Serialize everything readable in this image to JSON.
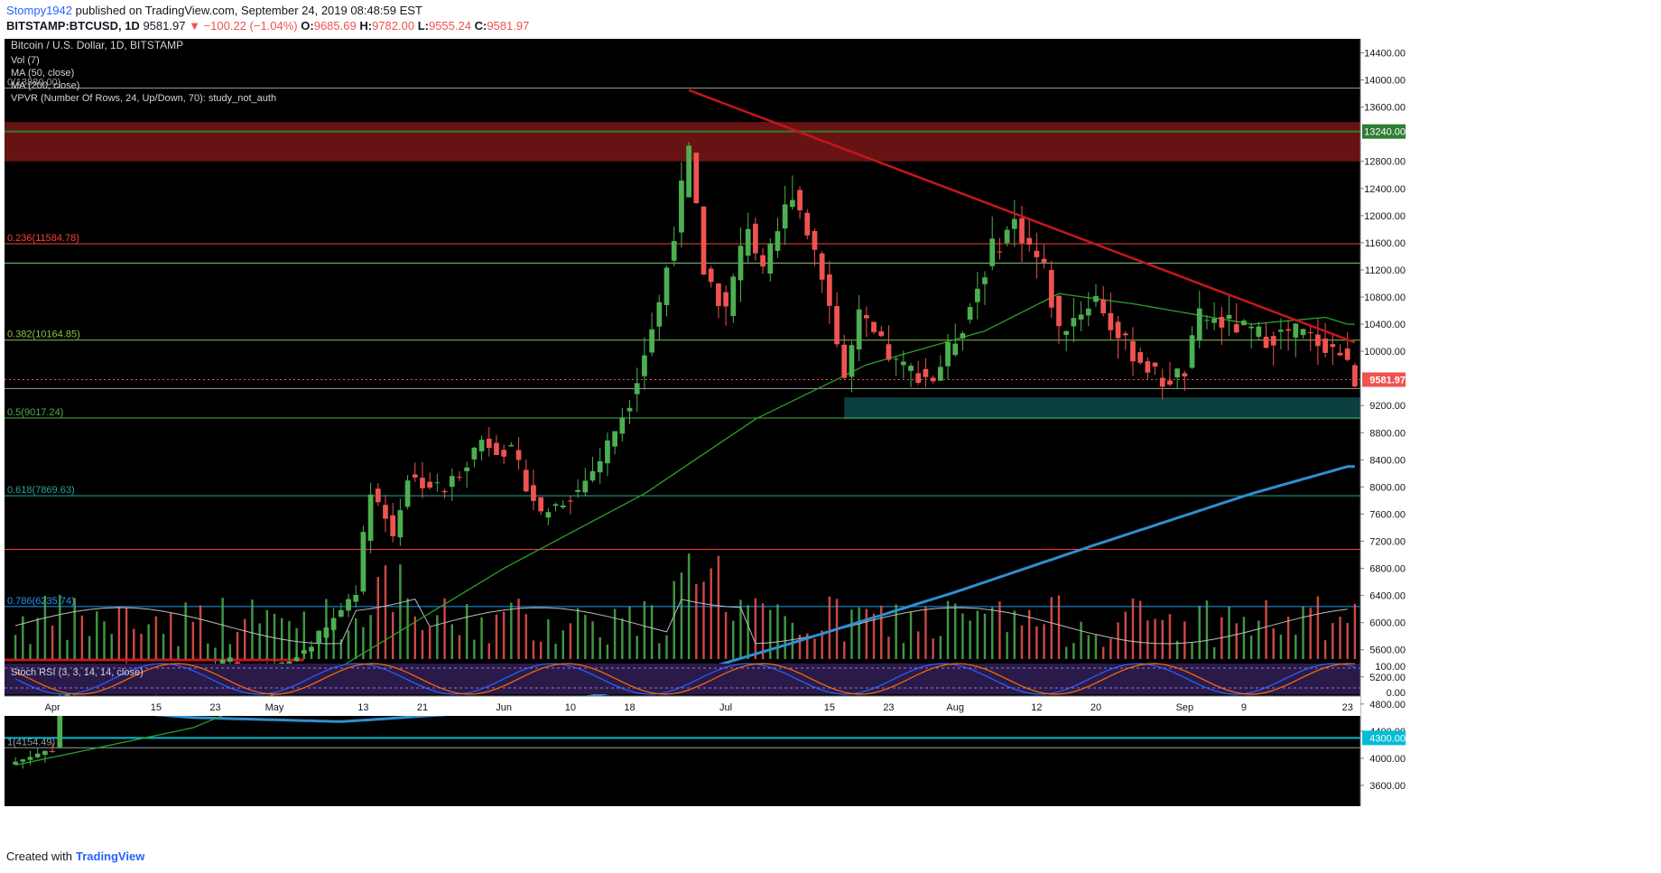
{
  "header": {
    "author": "Stompy1942",
    "published_text": "published on TradingView.com, September 24, 2019 08:48:59 EST",
    "symbol": "BITSTAMP:BTCUSD, 1D",
    "last": "9581.97",
    "change": "−100.22 (−1.04%)",
    "o_label": "O:",
    "o": "9685.69",
    "h_label": "H:",
    "h": "9782.00",
    "l_label": "L:",
    "l": "9555.24",
    "c_label": "C:",
    "c": "9581.97"
  },
  "legend": {
    "title": "Bitcoin / U.S. Dollar, 1D, BITSTAMP",
    "vol": "Vol (7)",
    "ma50": "MA (50, close)",
    "ma200": "MA (200, close)",
    "vpvr": "VPVR (Number Of Rows, 24, Up/Down, 70): study_not_auth",
    "stoch": "Stoch RSI (3, 3, 14, 14, close)"
  },
  "footer": {
    "created_with": "Created with",
    "brand": "TradingView"
  },
  "colors": {
    "background": "#000000",
    "up": "#4caf50",
    "down": "#ef5350",
    "ma50": "#2ca02c",
    "ma200": "#2f8fd0",
    "trendline": "#c4161c",
    "resistance_zone": "#8b1a1a",
    "support_zone": "#0f4f4f",
    "k_line": "#2962ff",
    "d_line": "#ff6d00"
  },
  "chart_data": {
    "type": "candlestick",
    "price_range": [
      3400,
      14500
    ],
    "price_ticks": [
      "14400.00",
      "14000.00",
      "13600.00",
      "12800.00",
      "12400.00",
      "12000.00",
      "11600.00",
      "11200.00",
      "10800.00",
      "10400.00",
      "10000.00",
      "9200.00",
      "8800.00",
      "8400.00",
      "8000.00",
      "7600.00",
      "7200.00",
      "6800.00",
      "6400.00",
      "6000.00",
      "5600.00",
      "5200.00",
      "4800.00",
      "4400.00",
      "4000.00",
      "3600.00"
    ],
    "x_ticks": [
      {
        "label": "Apr",
        "date": "2019-04-01"
      },
      {
        "label": "15",
        "date": "2019-04-15"
      },
      {
        "label": "23",
        "date": "2019-04-23"
      },
      {
        "label": "May",
        "date": "2019-05-01"
      },
      {
        "label": "13",
        "date": "2019-05-13"
      },
      {
        "label": "21",
        "date": "2019-05-21"
      },
      {
        "label": "Jun",
        "date": "2019-06-01"
      },
      {
        "label": "10",
        "date": "2019-06-10"
      },
      {
        "label": "18",
        "date": "2019-06-18"
      },
      {
        "label": "Jul",
        "date": "2019-07-01"
      },
      {
        "label": "15",
        "date": "2019-07-15"
      },
      {
        "label": "23",
        "date": "2019-07-23"
      },
      {
        "label": "Aug",
        "date": "2019-08-01"
      },
      {
        "label": "12",
        "date": "2019-08-12"
      },
      {
        "label": "20",
        "date": "2019-08-20"
      },
      {
        "label": "Sep",
        "date": "2019-09-01"
      },
      {
        "label": "9",
        "date": "2019-09-09"
      },
      {
        "label": "23",
        "date": "2019-09-23"
      }
    ],
    "fib_levels": [
      {
        "label": "0(13880.00)",
        "value": 13880,
        "color": "#9e9e9e"
      },
      {
        "label": "0.236(11584.78)",
        "value": 11584.78,
        "color": "#f44336"
      },
      {
        "label": "",
        "value": 11300,
        "color": "#81c784"
      },
      {
        "label": "0.382(10164.85)",
        "value": 10164.85,
        "color": "#8bc34a"
      },
      {
        "label": "",
        "value": 9450,
        "color": "#9e9e9e"
      },
      {
        "label": "0.5(9017.24)",
        "value": 9017.24,
        "color": "#4caf50"
      },
      {
        "label": "0.618(7869.63)",
        "value": 7869.63,
        "color": "#26a69a"
      },
      {
        "label": "",
        "value": 7080,
        "color": "#f44336"
      },
      {
        "label": "0.786(6235.74)",
        "value": 6235.74,
        "color": "#2196f3"
      },
      {
        "label": "1(4154.49)",
        "value": 4154.49,
        "color": "#9e9e9e"
      }
    ],
    "highlight_levels": [
      {
        "label": "13240.00",
        "value": 13240,
        "color": "#2e7d32"
      },
      {
        "label": "4300.00",
        "value": 4300,
        "color": "#00bcd4"
      }
    ],
    "last_price": {
      "label": "9581.97",
      "value": 9581.97
    },
    "resistance_zone": [
      12800,
      13380
    ],
    "support_zone": [
      9000,
      9320
    ],
    "trendline": [
      {
        "date": "2019-06-26",
        "value": 13850
      },
      {
        "date": "2019-09-24",
        "value": 10130
      }
    ],
    "side_level": {
      "from": "2019-03-27",
      "to": "2019-05-05",
      "value": 5450
    },
    "ohlc_anchors": [
      {
        "date": "2019-03-27",
        "value": 3950
      },
      {
        "date": "2019-04-01",
        "value": 4150
      },
      {
        "date": "2019-04-02",
        "value": 4900
      },
      {
        "date": "2019-04-05",
        "value": 5050
      },
      {
        "date": "2019-04-10",
        "value": 5250
      },
      {
        "date": "2019-04-14",
        "value": 5100
      },
      {
        "date": "2019-04-21",
        "value": 5300
      },
      {
        "date": "2019-04-25",
        "value": 5450
      },
      {
        "date": "2019-04-27",
        "value": 5150
      },
      {
        "date": "2019-05-03",
        "value": 5400
      },
      {
        "date": "2019-05-08",
        "value": 5900
      },
      {
        "date": "2019-05-12",
        "value": 6500
      },
      {
        "date": "2019-05-14",
        "value": 8000
      },
      {
        "date": "2019-05-17",
        "value": 7300
      },
      {
        "date": "2019-05-19",
        "value": 8150
      },
      {
        "date": "2019-05-24",
        "value": 7950
      },
      {
        "date": "2019-05-29",
        "value": 8700
      },
      {
        "date": "2019-06-02",
        "value": 8500
      },
      {
        "date": "2019-06-06",
        "value": 7600
      },
      {
        "date": "2019-06-11",
        "value": 7950
      },
      {
        "date": "2019-06-14",
        "value": 8400
      },
      {
        "date": "2019-06-18",
        "value": 9300
      },
      {
        "date": "2019-06-22",
        "value": 10700
      },
      {
        "date": "2019-06-26",
        "value": 12900
      },
      {
        "date": "2019-06-28",
        "value": 11200
      },
      {
        "date": "2019-07-01",
        "value": 10600
      },
      {
        "date": "2019-07-04",
        "value": 11900
      },
      {
        "date": "2019-07-06",
        "value": 11100
      },
      {
        "date": "2019-07-10",
        "value": 12400
      },
      {
        "date": "2019-07-14",
        "value": 11200
      },
      {
        "date": "2019-07-17",
        "value": 9600
      },
      {
        "date": "2019-07-19",
        "value": 10500
      },
      {
        "date": "2019-07-24",
        "value": 9800
      },
      {
        "date": "2019-07-29",
        "value": 9600
      },
      {
        "date": "2019-08-02",
        "value": 10400
      },
      {
        "date": "2019-08-06",
        "value": 11500
      },
      {
        "date": "2019-08-09",
        "value": 11900
      },
      {
        "date": "2019-08-13",
        "value": 11200
      },
      {
        "date": "2019-08-15",
        "value": 10300
      },
      {
        "date": "2019-08-20",
        "value": 10800
      },
      {
        "date": "2019-08-23",
        "value": 10200
      },
      {
        "date": "2019-08-29",
        "value": 9550
      },
      {
        "date": "2019-09-01",
        "value": 9700
      },
      {
        "date": "2019-09-03",
        "value": 10500
      },
      {
        "date": "2019-09-07",
        "value": 10400
      },
      {
        "date": "2019-09-12",
        "value": 10200
      },
      {
        "date": "2019-09-16",
        "value": 10300
      },
      {
        "date": "2019-09-20",
        "value": 10100
      },
      {
        "date": "2019-09-22",
        "value": 9980
      },
      {
        "date": "2019-09-24",
        "value": 9581.97
      }
    ],
    "ma50_anchors": [
      {
        "date": "2019-03-27",
        "value": 3900
      },
      {
        "date": "2019-04-20",
        "value": 4450
      },
      {
        "date": "2019-05-10",
        "value": 5350
      },
      {
        "date": "2019-06-01",
        "value": 6800
      },
      {
        "date": "2019-06-20",
        "value": 7900
      },
      {
        "date": "2019-07-05",
        "value": 9000
      },
      {
        "date": "2019-07-20",
        "value": 9800
      },
      {
        "date": "2019-08-05",
        "value": 10300
      },
      {
        "date": "2019-08-15",
        "value": 10850
      },
      {
        "date": "2019-08-25",
        "value": 10700
      },
      {
        "date": "2019-09-10",
        "value": 10400
      },
      {
        "date": "2019-09-20",
        "value": 10500
      },
      {
        "date": "2019-09-23",
        "value": 10400
      }
    ],
    "ma200_anchors": [
      {
        "date": "2019-03-27",
        "value": 4800
      },
      {
        "date": "2019-04-20",
        "value": 4600
      },
      {
        "date": "2019-05-10",
        "value": 4540
      },
      {
        "date": "2019-06-01",
        "value": 4700
      },
      {
        "date": "2019-06-20",
        "value": 5050
      },
      {
        "date": "2019-07-10",
        "value": 5700
      },
      {
        "date": "2019-08-01",
        "value": 6450
      },
      {
        "date": "2019-08-20",
        "value": 7150
      },
      {
        "date": "2019-09-10",
        "value": 7900
      },
      {
        "date": "2019-09-23",
        "value": 8300
      }
    ]
  }
}
